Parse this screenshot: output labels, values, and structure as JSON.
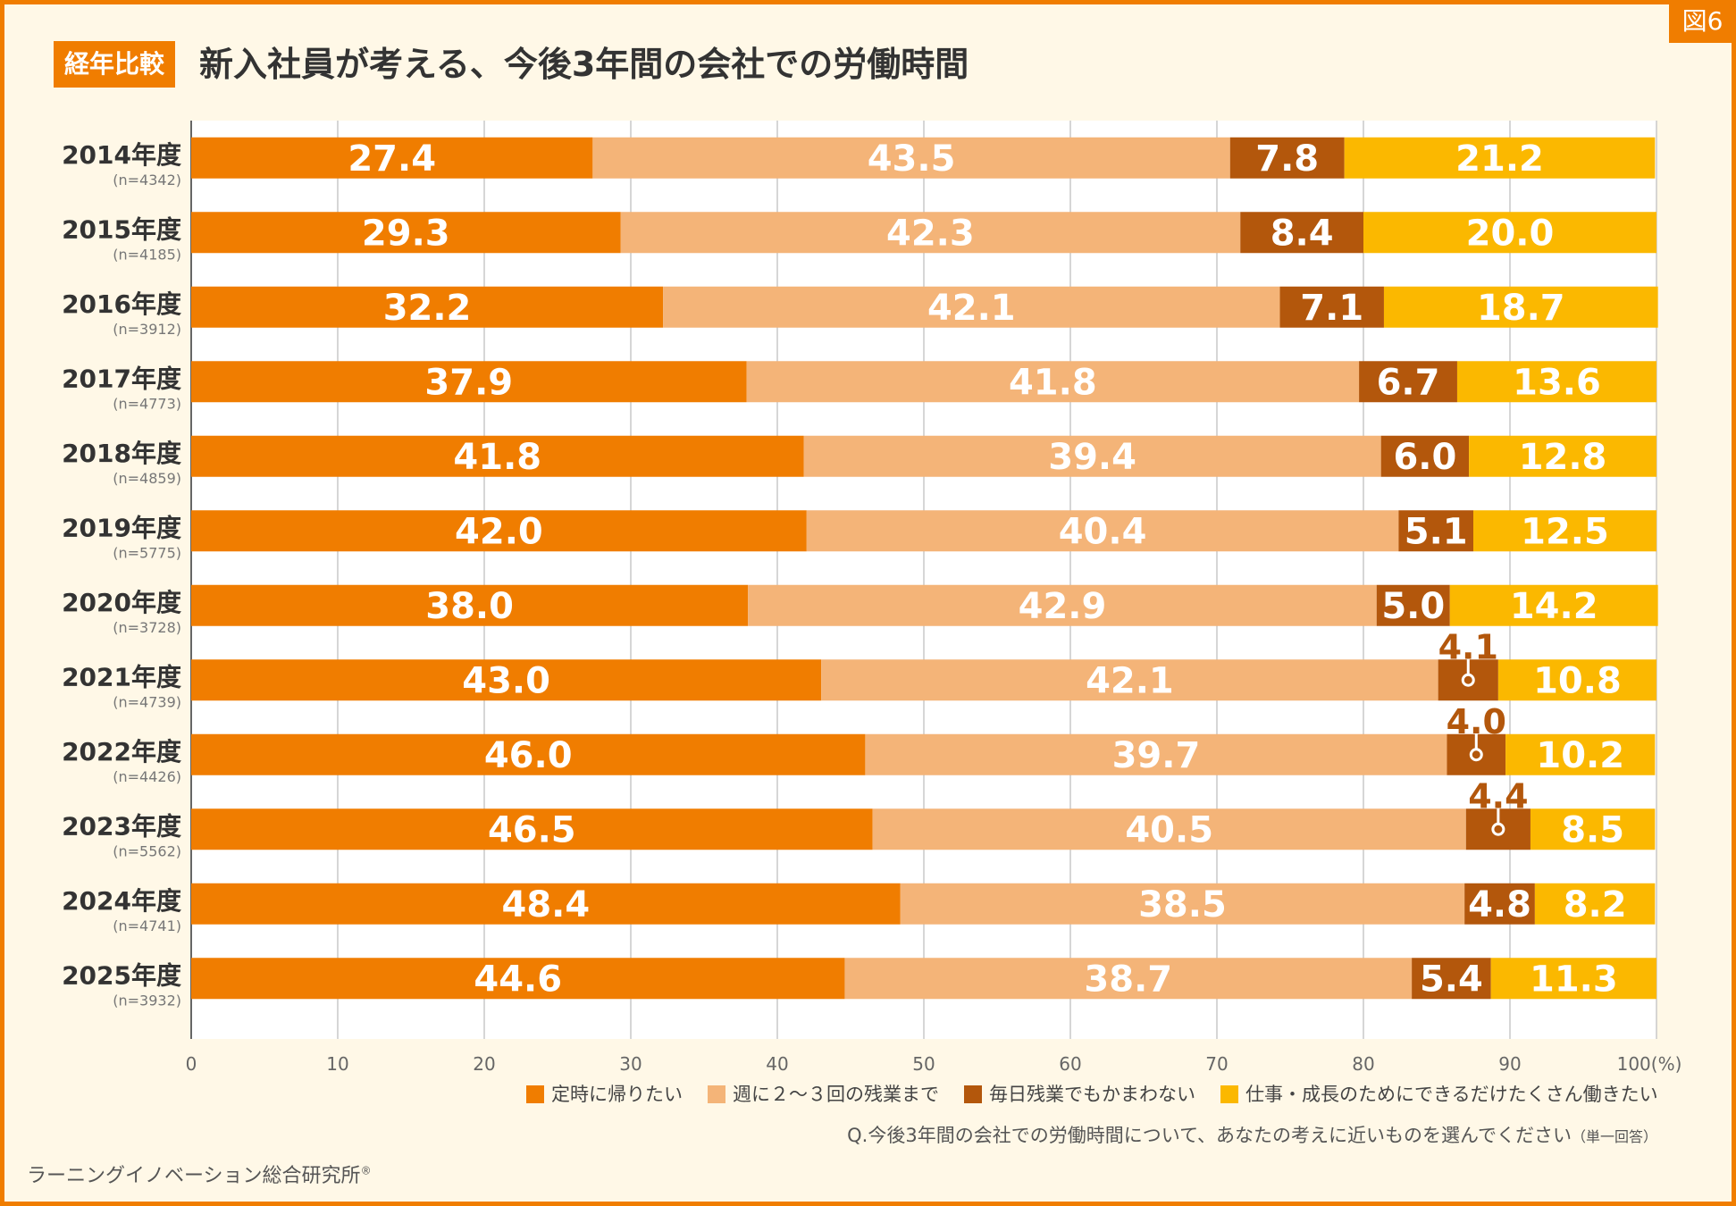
{
  "figure_label": "図6",
  "title_badge": "経年比較",
  "title": "新入社員が考える、今後3年間の会社での労働時間",
  "question": "Q.今後3年間の会社での労働時間について、あなたの考えに近いものを選んでください",
  "question_note": "（単一回答）",
  "source": "ラーニングイノベーション総合研究所",
  "source_mark": "®",
  "colors": {
    "s1": "#f07d00",
    "s2": "#f4b478",
    "s3": "#b3570c",
    "s4": "#fbb800",
    "frame": "#f07d00",
    "bg": "#fff8e7"
  },
  "chart_data": {
    "type": "bar",
    "orientation": "horizontal",
    "stacked": true,
    "categories": [
      "2014年度",
      "2015年度",
      "2016年度",
      "2017年度",
      "2018年度",
      "2019年度",
      "2020年度",
      "2021年度",
      "2022年度",
      "2023年度",
      "2024年度",
      "2025年度"
    ],
    "sample_sizes": [
      "(n=4342)",
      "(n=4185)",
      "(n=3912)",
      "(n=4773)",
      "(n=4859)",
      "(n=5775)",
      "(n=3728)",
      "(n=4739)",
      "(n=4426)",
      "(n=5562)",
      "(n=4741)",
      "(n=3932)"
    ],
    "series": [
      {
        "name": "定時に帰りたい",
        "values": [
          27.4,
          29.3,
          32.2,
          37.9,
          41.8,
          42.0,
          38.0,
          43.0,
          46.0,
          46.5,
          48.4,
          44.6
        ]
      },
      {
        "name": "週に２～３回の残業まで",
        "values": [
          43.5,
          42.3,
          42.1,
          41.8,
          39.4,
          40.4,
          42.9,
          42.1,
          39.7,
          40.5,
          38.5,
          38.7
        ]
      },
      {
        "name": "毎日残業でもかまわない",
        "values": [
          7.8,
          8.4,
          7.1,
          6.7,
          6.0,
          5.1,
          5.0,
          4.1,
          4.0,
          4.4,
          4.8,
          5.4
        ]
      },
      {
        "name": "仕事・成長のためにできるだけたくさん働きたい",
        "values": [
          21.2,
          20.0,
          18.7,
          13.6,
          12.8,
          12.5,
          14.2,
          10.8,
          10.2,
          8.5,
          8.2,
          11.3
        ]
      }
    ],
    "xlim": [
      0,
      100
    ],
    "xticks": [
      "0",
      "10",
      "20",
      "30",
      "40",
      "50",
      "60",
      "70",
      "80",
      "90",
      "100(%)"
    ],
    "grid": true,
    "legend_position": "bottom-right"
  }
}
